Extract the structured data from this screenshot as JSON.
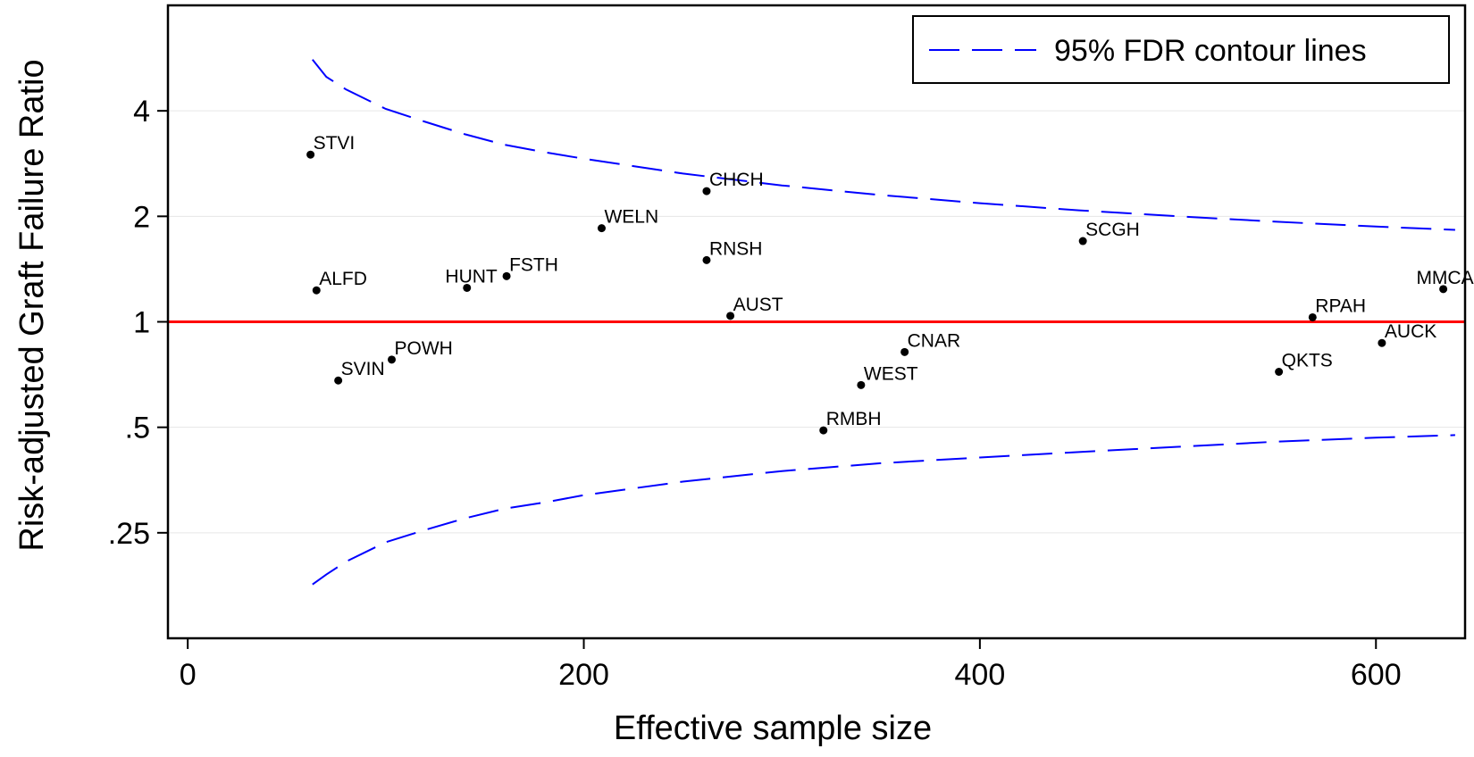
{
  "chart_data": {
    "type": "scatter",
    "xlabel": "Effective sample size",
    "ylabel": "Risk-adjusted Graft Failure Ratio",
    "xlim": [
      -10,
      645
    ],
    "ylim": [
      0.125,
      8
    ],
    "y_scale": "log2",
    "x_ticks": [
      0,
      200,
      400,
      600
    ],
    "x_tick_labels": [
      "0",
      "200",
      "400",
      "600"
    ],
    "y_ticks": [
      0.25,
      0.5,
      1,
      2,
      4
    ],
    "y_tick_labels": [
      ".25",
      ".5",
      "1",
      "2",
      "4"
    ],
    "grid": "horizontal",
    "reference_line": {
      "y": 1,
      "color": "#ff0000"
    },
    "legend": {
      "position": "top-right",
      "entries": [
        "95% FDR contour lines"
      ]
    },
    "colors": {
      "contour": "#0000ff",
      "reference": "#ff0000",
      "points": "#000000",
      "grid": "#e6e6e6"
    },
    "contour_upper": {
      "x": [
        63,
        70,
        80,
        100,
        120,
        140,
        160,
        180,
        200,
        250,
        300,
        350,
        400,
        450,
        500,
        550,
        600,
        640
      ],
      "y": [
        5.6,
        5.0,
        4.6,
        4.05,
        3.72,
        3.43,
        3.2,
        3.05,
        2.92,
        2.65,
        2.45,
        2.3,
        2.18,
        2.08,
        2.0,
        1.93,
        1.87,
        1.83
      ]
    },
    "contour_lower": {
      "x": [
        63,
        70,
        80,
        100,
        120,
        140,
        160,
        180,
        200,
        250,
        300,
        350,
        400,
        450,
        500,
        550,
        600,
        640
      ],
      "y": [
        0.178,
        0.19,
        0.207,
        0.235,
        0.255,
        0.275,
        0.293,
        0.305,
        0.32,
        0.35,
        0.375,
        0.395,
        0.41,
        0.425,
        0.44,
        0.455,
        0.467,
        0.475
      ]
    },
    "points": [
      {
        "label": "STVI",
        "x": 62,
        "y": 3.0
      },
      {
        "label": "ALFD",
        "x": 65,
        "y": 1.23
      },
      {
        "label": "SVIN",
        "x": 76,
        "y": 0.68
      },
      {
        "label": "POWH",
        "x": 103,
        "y": 0.78
      },
      {
        "label": "HUNT",
        "x": 141,
        "y": 1.25
      },
      {
        "label": "FSTH",
        "x": 161,
        "y": 1.35
      },
      {
        "label": "WELN",
        "x": 209,
        "y": 1.85
      },
      {
        "label": "CHCH",
        "x": 262,
        "y": 2.36
      },
      {
        "label": "RNSH",
        "x": 262,
        "y": 1.5
      },
      {
        "label": "AUST",
        "x": 274,
        "y": 1.04
      },
      {
        "label": "RMBH",
        "x": 321,
        "y": 0.49
      },
      {
        "label": "WEST",
        "x": 340,
        "y": 0.66
      },
      {
        "label": "CNAR",
        "x": 362,
        "y": 0.82
      },
      {
        "label": "SCGH",
        "x": 452,
        "y": 1.7
      },
      {
        "label": "QKTS",
        "x": 551,
        "y": 0.72
      },
      {
        "label": "RPAH",
        "x": 568,
        "y": 1.03
      },
      {
        "label": "AUCK",
        "x": 603,
        "y": 0.87
      },
      {
        "label": "MMCA",
        "x": 634,
        "y": 1.24
      }
    ]
  }
}
